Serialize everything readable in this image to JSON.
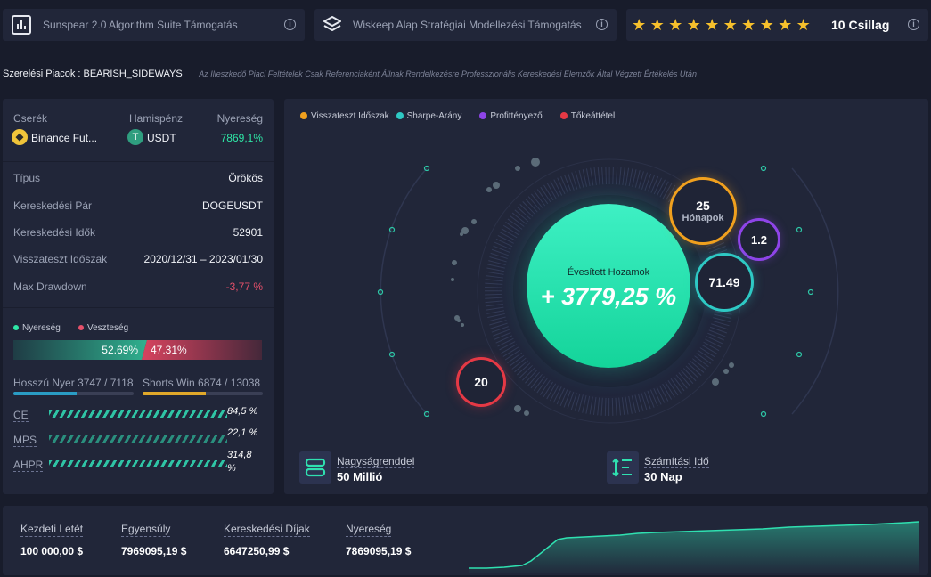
{
  "top_cards": {
    "card1_label": "Sunspear 2.0 Algorithm Suite Támogatás",
    "card2_label": "Wiskeep Alap Stratégiai Modellezési Támogatás",
    "stars_count": 10,
    "stars_label": "10 Csillag",
    "info_symbol": "i"
  },
  "banner": {
    "market": "Szerelési Piacok : BEARISH_SIDEWAYS",
    "disclaimer": "Az Illeszkedő Piaci Feltételek Csak Referenciaként Állnak Rendelkezésre Professzionális Kereskedési Elemzők Által Végzett Értékelés Után"
  },
  "left": {
    "exchange_label": "Cserék",
    "exchange_value": "Binance Fut...",
    "base_label": "Hamispénz",
    "base_value": "USDT",
    "profit_label": "Nyereség",
    "profit_value": "7869,1%",
    "rows": [
      {
        "label": "Típus",
        "value": "Örökös"
      },
      {
        "label": "Kereskedési Pár",
        "value": "DOGEUSDT"
      },
      {
        "label": "Kereskedési Idők",
        "value": "52901"
      },
      {
        "label": "Visszateszt Időszak",
        "value": "2020/12/31 – 2023/01/30"
      },
      {
        "label": "Max Drawdown",
        "value": "-3,77 %"
      }
    ],
    "legend_win": "Nyereség",
    "legend_loss": "Veszteség",
    "win_pct": "52.69%",
    "loss_pct": "47.31%",
    "win_fraction": 0.5269,
    "long_label": "Hosszú Nyer 3747 / 7118",
    "long_fraction": 0.526,
    "short_label": "Shorts Win 6874 / 13038",
    "short_fraction": 0.527,
    "metrics": [
      {
        "label": "CE",
        "value": "84,5 %"
      },
      {
        "label": "MPS",
        "value": "22,1 %"
      },
      {
        "label": "AHPR",
        "value": "314,8 %"
      }
    ]
  },
  "center": {
    "legend": [
      {
        "label": "Visszateszt Időszak",
        "color": "#f0a01e"
      },
      {
        "label": "Sharpe-Arány",
        "color": "#2ec9c4"
      },
      {
        "label": "Profittényező",
        "color": "#8e44e8"
      },
      {
        "label": "Tőkeáttétel",
        "color": "#e53945"
      }
    ],
    "main_title": "Évesített Hozamok",
    "main_value": "+ 3779,25 %",
    "bubble_period_value": "25",
    "bubble_period_unit": "Hónapok",
    "bubble_profit_factor": "1.2",
    "bubble_sharpe": "71.49",
    "bubble_leverage": "20",
    "magnitude_label": "Nagyságrenddel",
    "magnitude_value": "50 Millió",
    "calc_label": "Számítási Idő",
    "calc_value": "30 Nap"
  },
  "bottom": {
    "items": [
      {
        "label": "Kezdeti Letét",
        "value": "100 000,00 $"
      },
      {
        "label": "Egyensúly",
        "value": "7969095,19 $"
      },
      {
        "label": "Kereskedési Díjak",
        "value": "6647250,99 $"
      },
      {
        "label": "Nyereség",
        "value": "7869095,19 $"
      }
    ]
  },
  "colors": {
    "accent": "#2fe0b0",
    "profit": "#2ee6a6",
    "loss": "#e5506a",
    "orange": "#f0a01e",
    "purple": "#8e44e8",
    "teal": "#2ec9c4",
    "red": "#e53945",
    "star": "#f6c02c"
  }
}
